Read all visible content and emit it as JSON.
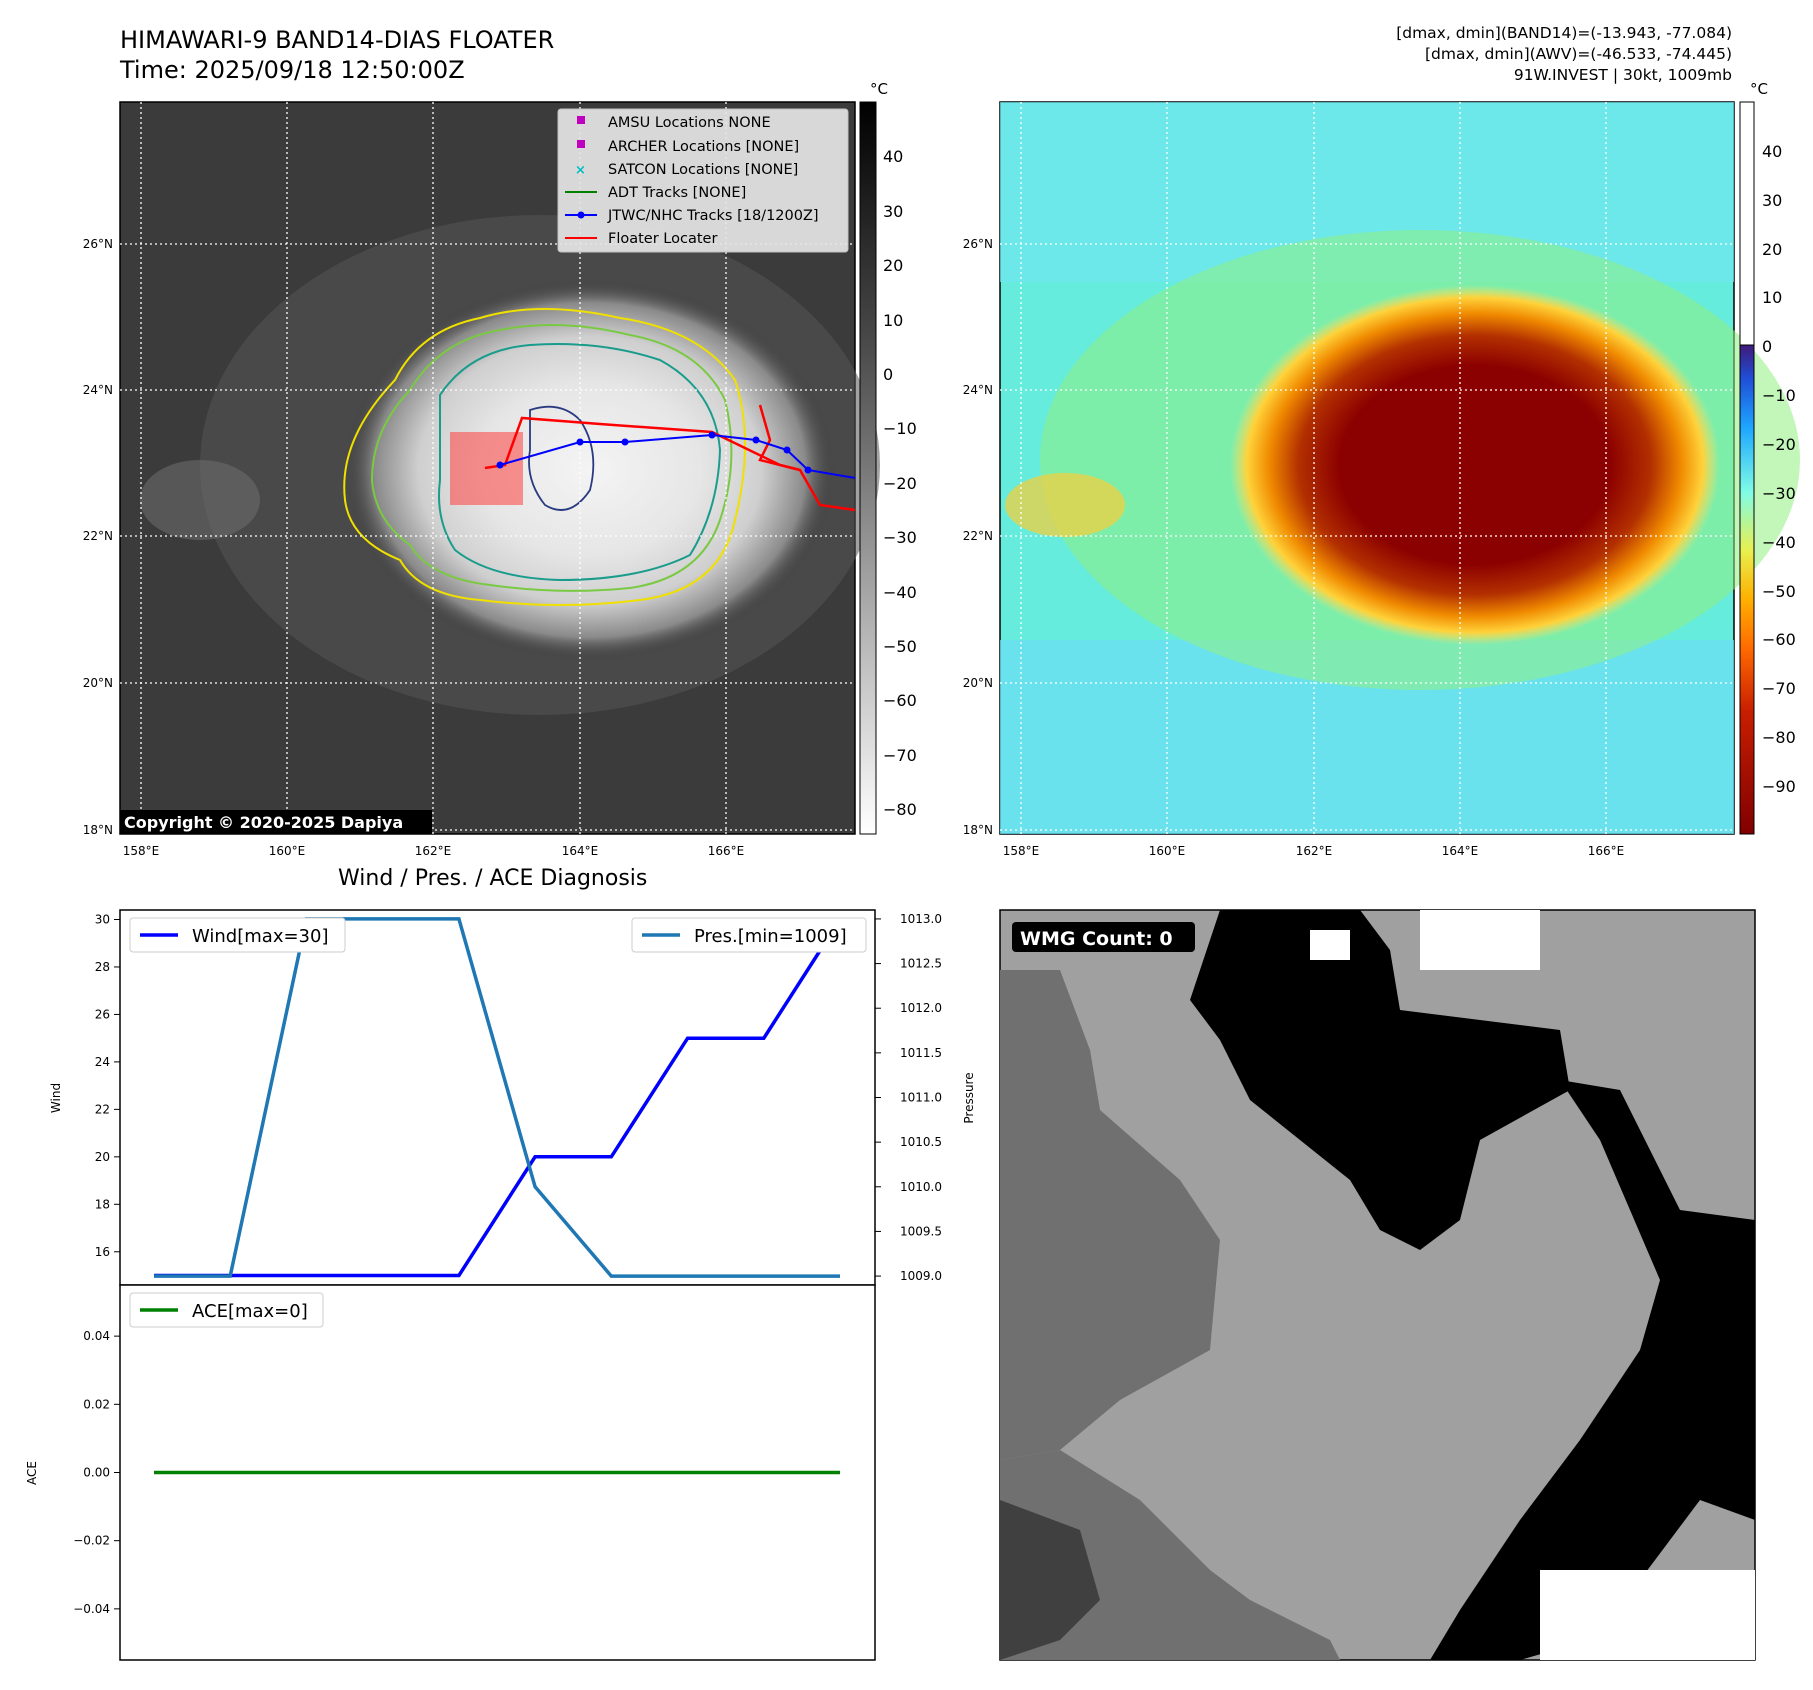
{
  "header": {
    "title": "HIMAWARI-9 BAND14-DIAS FLOATER",
    "time": "Time: 2025/09/18 12:50:00Z",
    "info_line1": "[dmax, dmin](BAND14)=(-13.943, -77.084)",
    "info_line2": "[dmax, dmin](AWV)=(-46.533, -74.445)",
    "info_line3": "91W.INVEST | 30kt, 1009mb"
  },
  "map": {
    "lat_labels": [
      "26°N",
      "24°N",
      "22°N",
      "20°N",
      "18°N"
    ],
    "lon_labels": [
      "158°E",
      "160°E",
      "162°E",
      "164°E",
      "166°E"
    ],
    "copyright": "Copyright © 2020-2025 Dapiya",
    "legend": [
      {
        "label": "AMSU Locations NONE",
        "marker": "square",
        "color": "#bf00bf"
      },
      {
        "label": "ARCHER Locations [NONE]",
        "marker": "square",
        "color": "#bf00bf"
      },
      {
        "label": "SATCON Locations [NONE]",
        "marker": "x",
        "color": "#00bfbf"
      },
      {
        "label": "ADT Tracks [NONE]",
        "marker": "line",
        "color": "#008000"
      },
      {
        "label": "JTWC/NHC Tracks [18/1200Z]",
        "marker": "line-dot",
        "color": "#0000ff"
      },
      {
        "label": "Floater Locater",
        "marker": "line",
        "color": "#ff0000"
      }
    ],
    "colorbar_unit": "°C",
    "colorbar1_ticks": [
      "40",
      "30",
      "20",
      "10",
      "0",
      "−10",
      "−20",
      "−30",
      "−40",
      "−50",
      "−60",
      "−70",
      "−80"
    ],
    "colorbar2_ticks": [
      "40",
      "30",
      "20",
      "10",
      "0",
      "−10",
      "−20",
      "−30",
      "−40",
      "−50",
      "−60",
      "−70",
      "−80",
      "−90"
    ]
  },
  "diag": {
    "title": "Wind / Pres. / ACE Diagnosis",
    "wind_label": "Wind",
    "pressure_label": "Pressure",
    "ace_label": "ACE",
    "wind_legend": "Wind[max=30]",
    "pres_legend": "Pres.[min=1009]",
    "ace_legend": "ACE[max=0]"
  },
  "wmg": {
    "label": "WMG Count: 0"
  },
  "chart_data": [
    {
      "type": "line",
      "title": "Wind / Pres. / ACE Diagnosis",
      "ylabel": "Wind",
      "ylim": [
        14.6,
        30.4
      ],
      "yticks": [
        16,
        18,
        20,
        22,
        24,
        26,
        28,
        30
      ],
      "series": [
        {
          "name": "Wind[max=30]",
          "color": "#0000ff",
          "x": [
            0,
            1,
            2,
            3,
            4,
            5,
            6,
            7,
            8,
            9
          ],
          "values": [
            15,
            15,
            15,
            15,
            15,
            20,
            20,
            25,
            25,
            30
          ]
        }
      ]
    },
    {
      "type": "line",
      "ylabel": "Pressure",
      "ylim": [
        1008.9,
        1013.1
      ],
      "yticks": [
        1009.0,
        1009.5,
        1010.0,
        1010.5,
        1011.0,
        1011.5,
        1012.0,
        1012.5,
        1013.0
      ],
      "series": [
        {
          "name": "Pres.[min=1009]",
          "color": "#1f77b4",
          "x": [
            0,
            1,
            2,
            3,
            4,
            5,
            6,
            7,
            8,
            9
          ],
          "values": [
            1009,
            1009,
            1013,
            1013,
            1013,
            1010,
            1009,
            1009,
            1009,
            1009
          ]
        }
      ]
    },
    {
      "type": "line",
      "ylabel": "ACE",
      "ylim": [
        -0.055,
        0.055
      ],
      "yticks": [
        -0.04,
        -0.02,
        0.0,
        0.02,
        0.04
      ],
      "series": [
        {
          "name": "ACE[max=0]",
          "color": "#008000",
          "x": [
            0,
            1,
            2,
            3,
            4,
            5,
            6,
            7,
            8,
            9
          ],
          "values": [
            0,
            0,
            0,
            0,
            0,
            0,
            0,
            0,
            0,
            0
          ]
        }
      ]
    }
  ]
}
